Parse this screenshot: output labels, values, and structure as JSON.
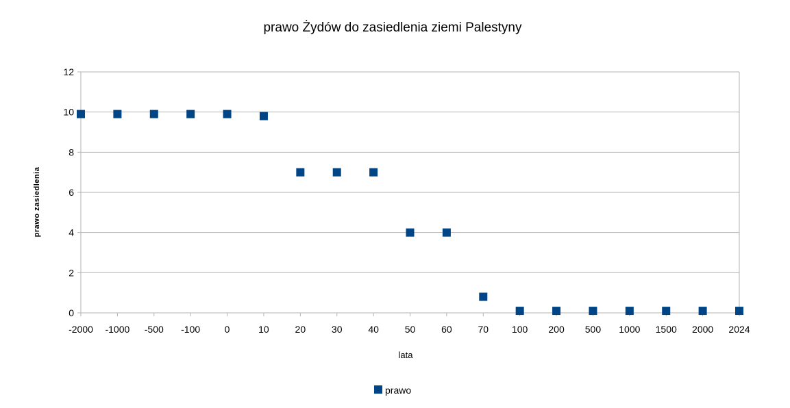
{
  "chart_data": {
    "type": "scatter",
    "title": "prawo Żydów do zasiedlenia ziemi Palestyny",
    "xlabel": "lata",
    "ylabel": "prawo zasiedlenia",
    "categories": [
      "-2000",
      "-1000",
      "-500",
      "-100",
      "0",
      "10",
      "20",
      "30",
      "40",
      "50",
      "60",
      "70",
      "100",
      "200",
      "500",
      "1000",
      "1500",
      "2000",
      "2024"
    ],
    "series": [
      {
        "name": "prawo",
        "color": "#004586",
        "values": [
          9.9,
          9.9,
          9.9,
          9.9,
          9.9,
          9.8,
          7,
          7,
          7,
          4,
          4,
          0.8,
          0.1,
          0.1,
          0.1,
          0.1,
          0.1,
          0.1,
          0.1
        ]
      }
    ],
    "ylim": [
      0,
      12
    ],
    "yticks": [
      0,
      2,
      4,
      6,
      8,
      10,
      12
    ],
    "grid": true,
    "legend": "bottom"
  }
}
